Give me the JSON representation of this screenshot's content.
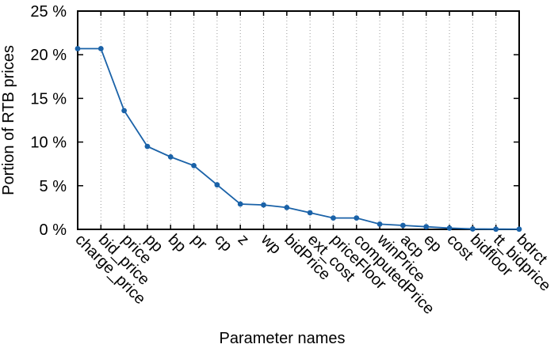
{
  "chart_data": {
    "type": "line",
    "title": "",
    "xlabel": "Parameter names",
    "ylabel": "Portion of RTB prices",
    "categories": [
      "charge_price",
      "bid_price",
      "price",
      "pp",
      "bp",
      "pr",
      "cp",
      "z",
      "wp",
      "bidPrice",
      "ext_cost",
      "priceFloor",
      "computedPrice",
      "winPrice",
      "acp",
      "ep",
      "cost",
      "bidfloor",
      "tt_bidprice",
      "bdrct"
    ],
    "series": [
      {
        "values": [
          20.7,
          20.7,
          13.6,
          9.5,
          8.3,
          7.3,
          5.1,
          2.9,
          2.8,
          2.5,
          1.9,
          1.3,
          1.3,
          0.6,
          0.45,
          0.3,
          0.15,
          0.05,
          0.03,
          0.02
        ],
        "color": "#1a62a8"
      }
    ],
    "ylim": [
      0,
      25
    ],
    "yticks": [
      0,
      5,
      10,
      15,
      20,
      25
    ],
    "ytick_labels": [
      "0 %",
      "5 %",
      "10 %",
      "15 %",
      "20 %",
      "25 %"
    ],
    "grid": "vertical-dotted",
    "legend": "none"
  }
}
